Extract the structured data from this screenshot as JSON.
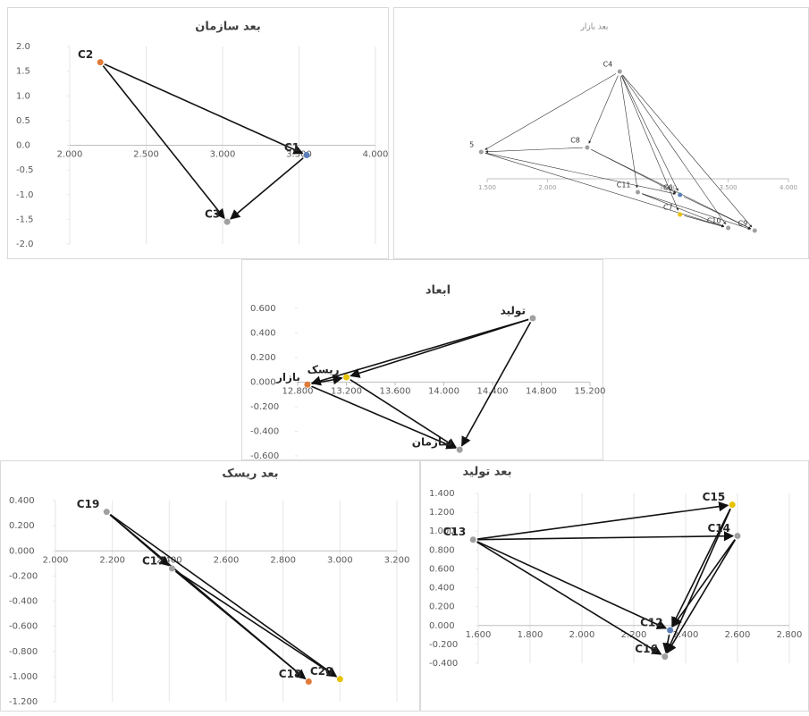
{
  "chart_data": [
    {
      "type": "scatter",
      "title": "بعد سازمان",
      "points": [
        {
          "label": "C2",
          "x": 2.2,
          "y": 1.68,
          "color": "#e07b39"
        },
        {
          "label": "C1",
          "x": 3.55,
          "y": -0.2,
          "color": "#5b7fb8"
        },
        {
          "label": "C3",
          "x": 3.03,
          "y": -1.55,
          "color": "#a0a0a0"
        }
      ],
      "arrows": [
        [
          0,
          1
        ],
        [
          0,
          2
        ],
        [
          1,
          2
        ]
      ],
      "xlim": [
        2,
        4
      ],
      "ylim": [
        -2,
        2
      ],
      "xticks": [
        {
          "value": 2,
          "label": "2.000"
        },
        {
          "value": 2.5,
          "label": "2.500"
        },
        {
          "value": 3,
          "label": "3.000"
        },
        {
          "value": 3.5,
          "label": "3.500"
        },
        {
          "value": 4,
          "label": "4.000"
        }
      ],
      "yticks": [
        {
          "value": 2,
          "label": "2.0"
        },
        {
          "value": 1.5,
          "label": "1.5"
        },
        {
          "value": 1,
          "label": "1.0"
        },
        {
          "value": 0.5,
          "label": "0.5"
        },
        {
          "value": 0,
          "label": "0.0"
        },
        {
          "value": -0.5,
          "label": "-0.5"
        },
        {
          "value": -1,
          "label": "-1.0"
        },
        {
          "value": -1.5,
          "label": "-1.5"
        },
        {
          "value": -2,
          "label": "-2.0"
        }
      ],
      "grid": true
    },
    {
      "type": "scatter",
      "title": "بعد بازار",
      "points": [
        {
          "label": "C4",
          "x": 2.6,
          "y": 1.2,
          "color": "#a0a0a0"
        },
        {
          "label": "5",
          "x": 1.45,
          "y": 0.3,
          "color": "#a0a0a0"
        },
        {
          "label": "C8",
          "x": 2.33,
          "y": 0.35,
          "color": "#a0a0a0"
        },
        {
          "label": "C11",
          "x": 2.75,
          "y": -0.15,
          "color": "#a0a0a0"
        },
        {
          "label": "C6",
          "x": 3.1,
          "y": -0.18,
          "color": "#5b7fb8"
        },
        {
          "label": "C7",
          "x": 3.1,
          "y": -0.4,
          "color": "#e6c200"
        },
        {
          "label": "C10",
          "x": 3.5,
          "y": -0.55,
          "color": "#a0a0a0"
        },
        {
          "label": "C9",
          "x": 3.72,
          "y": -0.58,
          "color": "#a0a0a0"
        }
      ],
      "arrows": [
        [
          0,
          1
        ],
        [
          0,
          2
        ],
        [
          0,
          3
        ],
        [
          0,
          4
        ],
        [
          0,
          5
        ],
        [
          0,
          6
        ],
        [
          0,
          7
        ],
        [
          2,
          1
        ],
        [
          1,
          4
        ],
        [
          1,
          6
        ],
        [
          2,
          4
        ],
        [
          2,
          7
        ],
        [
          3,
          7
        ],
        [
          3,
          6
        ],
        [
          4,
          7
        ],
        [
          5,
          6
        ]
      ],
      "xlim": [
        1.5,
        4
      ],
      "xticks": [
        {
          "value": 1.5,
          "label": "1.500"
        },
        {
          "value": 2,
          "label": "2.000"
        },
        {
          "value": 3,
          "label": "3.000"
        },
        {
          "value": 3.5,
          "label": "3.500"
        },
        {
          "value": 4,
          "label": "4.000"
        }
      ],
      "ylim": [
        -0.6,
        1.3
      ],
      "grid": false
    },
    {
      "type": "scatter",
      "title": "ابعاد",
      "points": [
        {
          "label": "تولید",
          "x": 14.73,
          "y": 0.52,
          "color": "#a0a0a0"
        },
        {
          "label": "بازار",
          "x": 12.88,
          "y": -0.02,
          "color": "#e07b39"
        },
        {
          "label": "ریسک",
          "x": 13.2,
          "y": 0.04,
          "color": "#e6c200"
        },
        {
          "label": "سازمان",
          "x": 14.13,
          "y": -0.55,
          "color": "#a0a0a0"
        }
      ],
      "arrows": [
        [
          0,
          1
        ],
        [
          0,
          2
        ],
        [
          0,
          3
        ],
        [
          1,
          2
        ],
        [
          1,
          3
        ],
        [
          2,
          3
        ]
      ],
      "xlim": [
        12.8,
        15.2
      ],
      "ylim": [
        -0.6,
        0.6
      ],
      "xticks": [
        {
          "value": 12.8,
          "label": "12.800"
        },
        {
          "value": 13.2,
          "label": "13.200"
        },
        {
          "value": 13.6,
          "label": "13.600"
        },
        {
          "value": 14,
          "label": "14.000"
        },
        {
          "value": 14.4,
          "label": "14.400"
        },
        {
          "value": 14.8,
          "label": "14.800"
        },
        {
          "value": 15.2,
          "label": "15.200"
        }
      ],
      "yticks": [
        {
          "value": 0.6,
          "label": "0.600"
        },
        {
          "value": 0.4,
          "label": "0.400"
        },
        {
          "value": 0.2,
          "label": "0.200"
        },
        {
          "value": 0,
          "label": "0.000"
        },
        {
          "value": -0.2,
          "label": "-0.200"
        },
        {
          "value": -0.4,
          "label": "-0.400"
        },
        {
          "value": -0.6,
          "label": "-0.600"
        }
      ],
      "grid": false
    },
    {
      "type": "scatter",
      "title": "بعد ریسک",
      "points": [
        {
          "label": "C19",
          "x": 2.18,
          "y": 0.31,
          "color": "#a0a0a0"
        },
        {
          "label": "C17",
          "x": 2.41,
          "y": -0.14,
          "color": "#a0a0a0"
        },
        {
          "label": "C18",
          "x": 2.89,
          "y": -1.04,
          "color": "#e07b39"
        },
        {
          "label": "C20",
          "x": 3.0,
          "y": -1.02,
          "color": "#e6c200"
        }
      ],
      "arrows": [
        [
          0,
          1
        ],
        [
          0,
          2
        ],
        [
          0,
          3
        ],
        [
          1,
          2
        ],
        [
          1,
          3
        ]
      ],
      "xlim": [
        2,
        3.2
      ],
      "ylim": [
        -1.2,
        0.4
      ],
      "xticks": [
        {
          "value": 2,
          "label": "2.000"
        },
        {
          "value": 2.2,
          "label": "2.200"
        },
        {
          "value": 2.4,
          "label": "2.400"
        },
        {
          "value": 2.6,
          "label": "2.600"
        },
        {
          "value": 2.8,
          "label": "2.800"
        },
        {
          "value": 3,
          "label": "3.000"
        },
        {
          "value": 3.2,
          "label": "3.200"
        }
      ],
      "yticks": [
        {
          "value": 0.4,
          "label": "0.400"
        },
        {
          "value": 0.2,
          "label": "0.200"
        },
        {
          "value": 0,
          "label": "0.000"
        },
        {
          "value": -0.2,
          "label": "-0.200"
        },
        {
          "value": -0.4,
          "label": "-0.400"
        },
        {
          "value": -0.6,
          "label": "-0.600"
        },
        {
          "value": -0.8,
          "label": "-0.800"
        },
        {
          "value": -1,
          "label": "-1.000"
        },
        {
          "value": -1.2,
          "label": "-1.200"
        }
      ],
      "grid": true
    },
    {
      "type": "scatter",
      "title": "بعد تولید",
      "points": [
        {
          "label": "C13",
          "x": 1.58,
          "y": 0.91,
          "color": "#a0a0a0"
        },
        {
          "label": "C15",
          "x": 2.58,
          "y": 1.28,
          "color": "#e6c200"
        },
        {
          "label": "C14",
          "x": 2.6,
          "y": 0.95,
          "color": "#a0a0a0"
        },
        {
          "label": "C12",
          "x": 2.34,
          "y": -0.05,
          "color": "#5b7fb8"
        },
        {
          "label": "C16",
          "x": 2.32,
          "y": -0.33,
          "color": "#a0a0a0"
        }
      ],
      "arrows": [
        [
          0,
          1
        ],
        [
          0,
          2
        ],
        [
          0,
          3
        ],
        [
          0,
          4
        ],
        [
          1,
          3
        ],
        [
          1,
          4
        ],
        [
          2,
          3
        ],
        [
          2,
          4
        ],
        [
          3,
          4
        ]
      ],
      "xlim": [
        1.6,
        2.8
      ],
      "ylim": [
        -0.4,
        1.4
      ],
      "xticks": [
        {
          "value": 1.6,
          "label": "1.600"
        },
        {
          "value": 1.8,
          "label": "1.800"
        },
        {
          "value": 2,
          "label": "2.000"
        },
        {
          "value": 2.2,
          "label": "2.200"
        },
        {
          "value": 2.4,
          "label": "2.400"
        },
        {
          "value": 2.6,
          "label": "2.600"
        },
        {
          "value": 2.8,
          "label": "2.800"
        }
      ],
      "yticks": [
        {
          "value": 1.4,
          "label": "1.400"
        },
        {
          "value": 1.2,
          "label": "1.200"
        },
        {
          "value": 1,
          "label": "1.000"
        },
        {
          "value": 0.8,
          "label": "0.800"
        },
        {
          "value": 0.6,
          "label": "0.600"
        },
        {
          "value": 0.4,
          "label": "0.400"
        },
        {
          "value": 0.2,
          "label": "0.200"
        },
        {
          "value": 0,
          "label": "0.000"
        },
        {
          "value": -0.2,
          "label": "-0.200"
        },
        {
          "value": -0.4,
          "label": "-0.400"
        }
      ],
      "grid": true
    }
  ]
}
